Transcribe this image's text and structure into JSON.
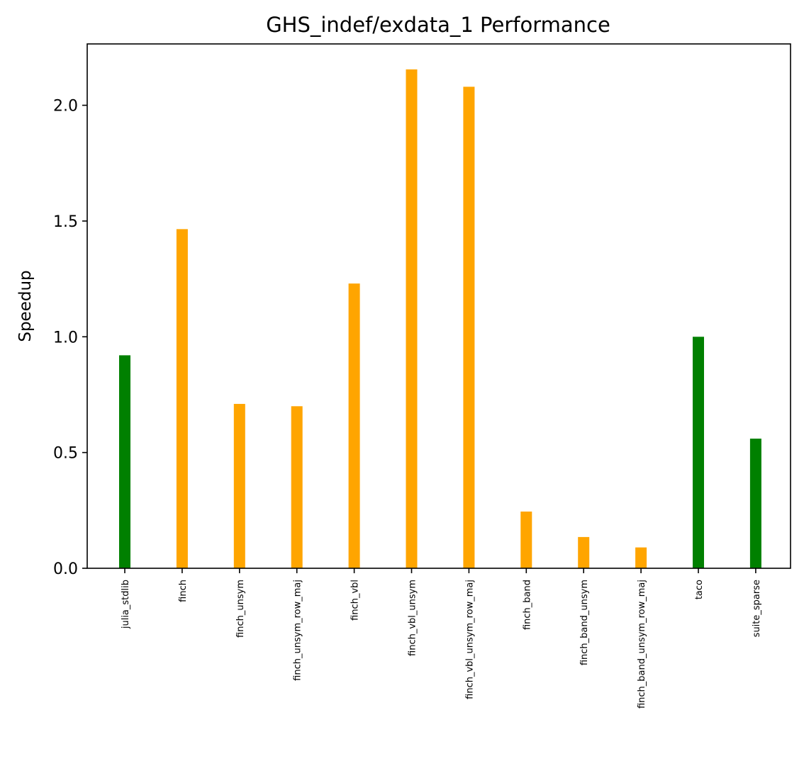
{
  "chart_data": {
    "type": "bar",
    "title": "GHS_indef/exdata_1 Performance",
    "xlabel": "",
    "ylabel": "Speedup",
    "ylim": [
      0,
      2.265
    ],
    "yticks": [
      "0.0",
      "0.5",
      "1.0",
      "1.5",
      "2.0"
    ],
    "grid": false,
    "categories": [
      "julia_stdlib",
      "finch",
      "finch_unsym",
      "finch_unsym_row_maj",
      "finch_vbl",
      "finch_vbl_unsym",
      "finch_vbl_unsym_row_maj",
      "finch_band",
      "finch_band_unsym",
      "finch_band_unsym_row_maj",
      "taco",
      "suite_sparse"
    ],
    "values": [
      0.92,
      1.465,
      0.71,
      0.7,
      1.23,
      2.155,
      2.08,
      0.245,
      0.135,
      0.09,
      1.0,
      0.56
    ],
    "bar_colors": [
      "#008000",
      "#FFA500",
      "#FFA500",
      "#FFA500",
      "#FFA500",
      "#FFA500",
      "#FFA500",
      "#FFA500",
      "#FFA500",
      "#FFA500",
      "#008000",
      "#008000"
    ]
  }
}
